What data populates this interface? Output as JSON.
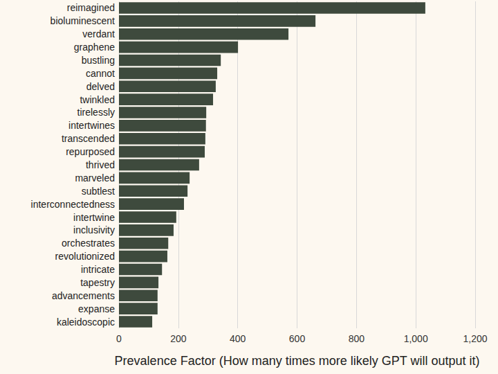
{
  "chart_data": {
    "type": "bar",
    "orientation": "horizontal",
    "xlabel": "Prevalence Factor (How many times more likely GPT will output it)",
    "categories": [
      "reimagined",
      "bioluminescent",
      "verdant",
      "graphene",
      "bustling",
      "cannot",
      "delved",
      "twinkled",
      "tirelessly",
      "intertwines",
      "transcended",
      "repurposed",
      "thrived",
      "marveled",
      "subtlest",
      "interconnectedness",
      "intertwine",
      "inclusivity",
      "orchestrates",
      "revolutionized",
      "intricate",
      "tapestry",
      "advancements",
      "expanse",
      "kaleidoscopic"
    ],
    "values": [
      1032,
      662,
      571,
      401,
      343,
      331,
      326,
      317,
      294,
      293,
      291,
      289,
      270,
      238,
      231,
      219,
      193,
      184,
      166,
      163,
      145,
      133,
      130,
      130,
      112
    ],
    "color": "#3e4a3d",
    "xlim": [
      0,
      1200
    ],
    "xticks": [
      0,
      200,
      400,
      600,
      800,
      {
        "value": 1000,
        "label": "1,000"
      },
      {
        "value": 1200,
        "label": "1,200"
      }
    ],
    "grid": true
  }
}
